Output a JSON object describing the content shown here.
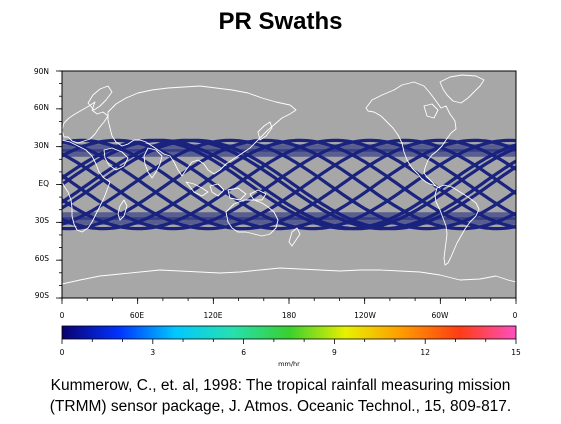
{
  "title": "PR Swaths",
  "map": {
    "background_color": "#a7a7a7",
    "coastline_color": "#ffffff",
    "swath_color": "#1a237e",
    "lat_labels": [
      "90N",
      "60N",
      "30N",
      "EQ",
      "30S",
      "60S",
      "90S"
    ],
    "lon_labels": [
      "0",
      "60E",
      "120E",
      "180",
      "120W",
      "60W",
      "0"
    ],
    "swath_lat_range": [
      -35,
      35
    ],
    "swath_band_lats": [
      -29,
      -25,
      25,
      29
    ],
    "orbit_inclination_deg": 35,
    "orbit_count": 13
  },
  "colorbar": {
    "tick_labels": [
      "0",
      "3",
      "6",
      "9",
      "12",
      "15"
    ],
    "unit": "mm/hr",
    "range": [
      0,
      15
    ],
    "colors": [
      "#0b006e",
      "#0033ff",
      "#00c8ff",
      "#26e0b0",
      "#39d030",
      "#e8f000",
      "#ff9a00",
      "#ff3c14",
      "#ff4fbe"
    ]
  },
  "citation": {
    "line1": "Kummerow, C., et. al, 1998: The tropical rainfall measuring mission",
    "line2": "(TRMM) sensor package, J. Atmos. Oceanic Technol., 15, 809-817."
  }
}
